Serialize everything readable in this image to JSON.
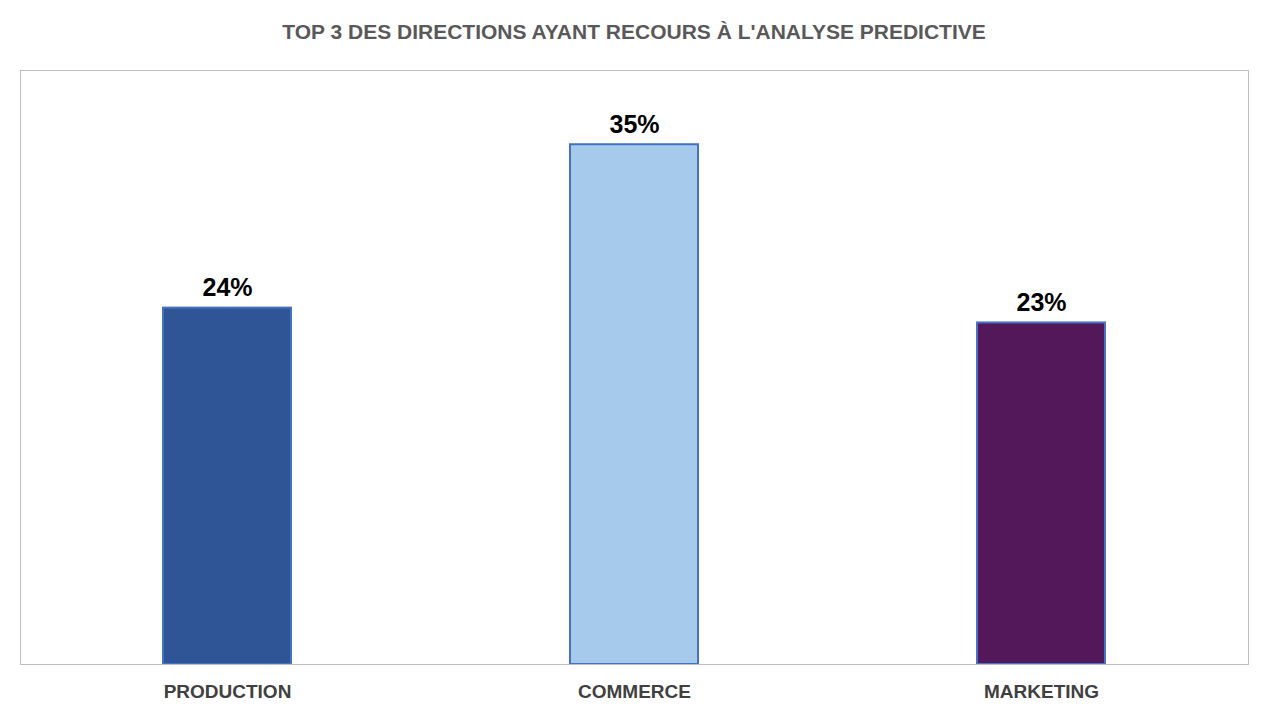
{
  "chart_data": {
    "type": "bar",
    "title": "TOP 3 DES DIRECTIONS AYANT RECOURS À L'ANALYSE PREDICTIVE",
    "categories": [
      "PRODUCTION",
      "COMMERCE",
      "MARKETING"
    ],
    "values": [
      24,
      35,
      23
    ],
    "value_labels": [
      "24%",
      "35%",
      "23%"
    ],
    "colors": [
      "#2f5597",
      "#a6caec",
      "#52185a"
    ],
    "ylim": [
      0,
      40
    ],
    "grid": false,
    "data_labels": true,
    "tick_labels": "x"
  }
}
